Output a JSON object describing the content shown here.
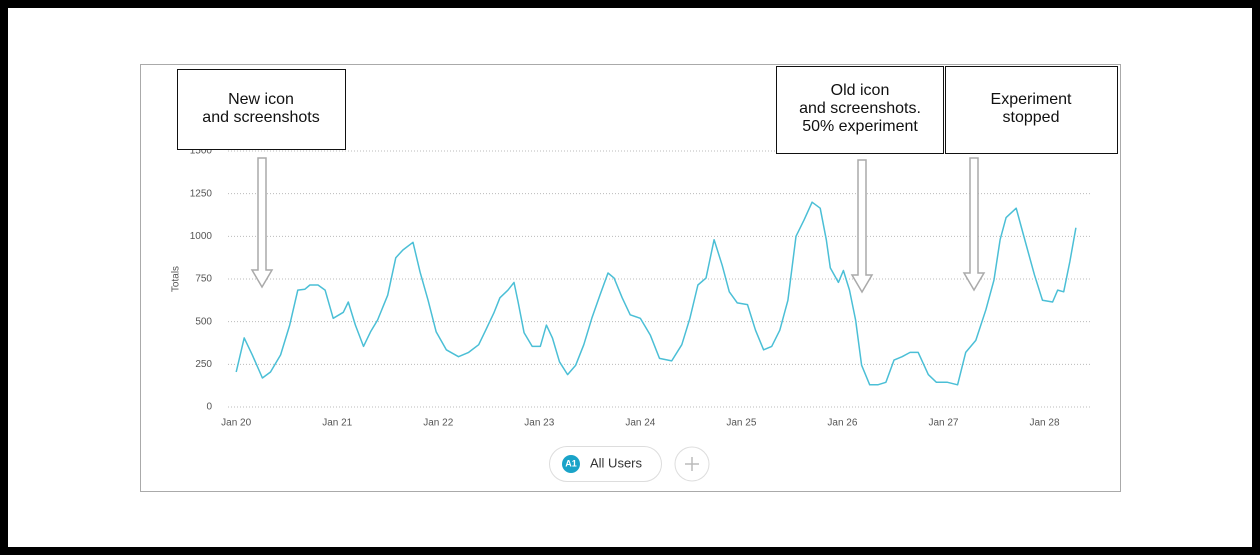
{
  "chart_data": {
    "type": "line",
    "y_axis_label": "Totals",
    "xlim": [
      -0.15,
      8.45
    ],
    "xticks": [
      {
        "value": 0,
        "label": "Jan 20"
      },
      {
        "value": 1,
        "label": "Jan 21"
      },
      {
        "value": 2,
        "label": "Jan 22"
      },
      {
        "value": 3,
        "label": "Jan 23"
      },
      {
        "value": 4,
        "label": "Jan 24"
      },
      {
        "value": 5,
        "label": "Jan 25"
      },
      {
        "value": 6,
        "label": "Jan 26"
      },
      {
        "value": 7,
        "label": "Jan 27"
      },
      {
        "value": 8,
        "label": "Jan 28"
      }
    ],
    "ylim": [
      0,
      1500
    ],
    "yticks": [
      0,
      250,
      500,
      750,
      1000,
      1250,
      1500
    ],
    "grid": true,
    "x": [
      0,
      0.08,
      0.16,
      0.26,
      0.34,
      0.44,
      0.53,
      0.61,
      0.68,
      0.73,
      0.81,
      0.88,
      0.96,
      1.06,
      1.11,
      1.18,
      1.26,
      1.33,
      1.4,
      1.5,
      1.58,
      1.65,
      1.75,
      1.82,
      1.9,
      1.98,
      2.08,
      2.2,
      2.3,
      2.4,
      2.47,
      2.55,
      2.61,
      2.69,
      2.75,
      2.79,
      2.85,
      2.93,
      3.01,
      3.07,
      3.13,
      3.2,
      3.28,
      3.36,
      3.44,
      3.52,
      3.6,
      3.68,
      3.74,
      3.82,
      3.9,
      4.0,
      4.1,
      4.19,
      4.31,
      4.41,
      4.49,
      4.57,
      4.65,
      4.73,
      4.81,
      4.88,
      4.96,
      5.06,
      5.14,
      5.22,
      5.3,
      5.38,
      5.46,
      5.54,
      5.62,
      5.7,
      5.78,
      5.84,
      5.88,
      5.96,
      6.01,
      6.07,
      6.13,
      6.19,
      6.27,
      6.35,
      6.43,
      6.51,
      6.59,
      6.67,
      6.75,
      6.85,
      6.93,
      7.04,
      7.14,
      7.22,
      7.32,
      7.42,
      7.5,
      7.56,
      7.62,
      7.72,
      7.8,
      7.9,
      7.98,
      8.08,
      8.13,
      8.19,
      8.25,
      8.31
    ],
    "series": [
      {
        "name": "All Users",
        "color": "#4bbfd6",
        "values": [
          205,
          405,
          305,
          170,
          205,
          305,
          480,
          685,
          690,
          715,
          715,
          685,
          520,
          555,
          615,
          480,
          355,
          440,
          510,
          655,
          875,
          920,
          965,
          790,
          625,
          440,
          335,
          295,
          320,
          365,
          450,
          550,
          640,
          685,
          730,
          615,
          435,
          355,
          355,
          480,
          405,
          265,
          190,
          245,
          365,
          520,
          655,
          785,
          755,
          640,
          540,
          520,
          420,
          285,
          270,
          365,
          520,
          715,
          755,
          980,
          830,
          675,
          610,
          600,
          450,
          335,
          355,
          450,
          625,
          1000,
          1095,
          1200,
          1165,
          980,
          815,
          730,
          800,
          685,
          510,
          245,
          130,
          130,
          145,
          275,
          295,
          320,
          320,
          190,
          145,
          145,
          130,
          320,
          390,
          570,
          745,
          980,
          1110,
          1165,
          990,
          775,
          625,
          615,
          685,
          675,
          850,
          1050
        ]
      }
    ],
    "legend_badge": "A1",
    "annotations": [
      {
        "lines": [
          "New icon",
          "and screenshots"
        ]
      },
      {
        "lines": [
          "Old icon",
          "and screenshots.",
          "50% experiment"
        ]
      },
      {
        "lines": [
          "Experiment",
          "stopped"
        ]
      }
    ]
  }
}
